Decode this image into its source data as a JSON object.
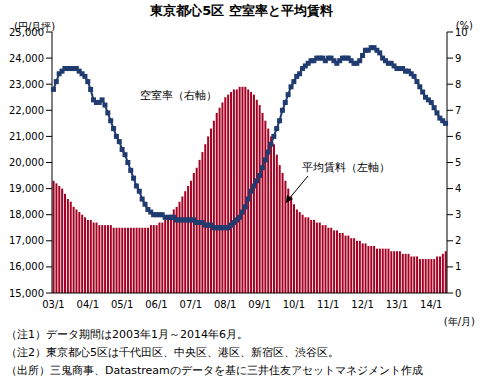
{
  "chart_data": {
    "type": "bar",
    "title": "東京都心5区 空室率と平均賃料",
    "y_label": "(円/月坪)",
    "y2_label": "(%)",
    "x_label": "(年/月)",
    "grid": false,
    "categories": [
      "03/1",
      null,
      null,
      null,
      null,
      null,
      null,
      null,
      null,
      null,
      null,
      null,
      "04/1",
      null,
      null,
      null,
      null,
      null,
      null,
      null,
      null,
      null,
      null,
      null,
      "05/1",
      null,
      null,
      null,
      null,
      null,
      null,
      null,
      null,
      null,
      null,
      null,
      "06/1",
      null,
      null,
      null,
      null,
      null,
      null,
      null,
      null,
      null,
      null,
      null,
      "07/1",
      null,
      null,
      null,
      null,
      null,
      null,
      null,
      null,
      null,
      null,
      null,
      "08/1",
      null,
      null,
      null,
      null,
      null,
      null,
      null,
      null,
      null,
      null,
      null,
      "09/1",
      null,
      null,
      null,
      null,
      null,
      null,
      null,
      null,
      null,
      null,
      null,
      "10/1",
      null,
      null,
      null,
      null,
      null,
      null,
      null,
      null,
      null,
      null,
      null,
      "11/1",
      null,
      null,
      null,
      null,
      null,
      null,
      null,
      null,
      null,
      null,
      null,
      "12/1",
      null,
      null,
      null,
      null,
      null,
      null,
      null,
      null,
      null,
      null,
      null,
      "13/1",
      null,
      null,
      null,
      null,
      null,
      null,
      null,
      null,
      null,
      null,
      null,
      "14/1",
      null,
      null,
      null,
      null,
      null
    ],
    "series": [
      {
        "name": "平均賃料（左軸）",
        "type": "bar",
        "color": "#a50021",
        "values": [
          19300,
          19200,
          19100,
          19000,
          18800,
          18600,
          18500,
          18300,
          18200,
          18100,
          18000,
          17900,
          17800,
          17800,
          17700,
          17700,
          17600,
          17600,
          17600,
          17600,
          17600,
          17500,
          17500,
          17500,
          17500,
          17500,
          17500,
          17500,
          17500,
          17500,
          17500,
          17500,
          17500,
          17500,
          17600,
          17600,
          17600,
          17700,
          17700,
          17800,
          17900,
          18000,
          18200,
          18300,
          18500,
          18700,
          18900,
          19100,
          19300,
          19600,
          19800,
          20100,
          20400,
          20700,
          21000,
          21300,
          21600,
          21900,
          22100,
          22300,
          22500,
          22600,
          22700,
          22800,
          22800,
          22900,
          22900,
          22900,
          22800,
          22700,
          22600,
          22400,
          22200,
          21900,
          21600,
          21300,
          21000,
          20700,
          20300,
          19900,
          19600,
          19300,
          19000,
          18700,
          18400,
          18200,
          18100,
          18000,
          17900,
          17900,
          17800,
          17800,
          17700,
          17700,
          17600,
          17600,
          17500,
          17500,
          17400,
          17400,
          17300,
          17300,
          17200,
          17200,
          17100,
          17100,
          17000,
          17000,
          16900,
          16900,
          16800,
          16800,
          16800,
          16700,
          16700,
          16700,
          16700,
          16700,
          16600,
          16600,
          16600,
          16600,
          16500,
          16500,
          16500,
          16400,
          16400,
          16400,
          16300,
          16300,
          16300,
          16300,
          16300,
          16300,
          16400,
          16400,
          16500,
          16600
        ]
      },
      {
        "name": "空室率（右軸）",
        "type": "line",
        "axis": "y2",
        "color": "#1f3b6f",
        "marker": "square",
        "values": [
          7.8,
          8.1,
          8.4,
          8.5,
          8.6,
          8.6,
          8.6,
          8.6,
          8.6,
          8.5,
          8.4,
          8.3,
          8.1,
          7.8,
          7.4,
          7.3,
          7.3,
          7.4,
          7.2,
          6.9,
          6.6,
          6.3,
          6.0,
          5.8,
          5.5,
          5.3,
          5.0,
          4.7,
          4.4,
          4.1,
          3.9,
          3.6,
          3.4,
          3.2,
          3.1,
          3.0,
          3.0,
          3.0,
          3.0,
          2.9,
          2.9,
          2.9,
          2.9,
          2.8,
          2.8,
          2.8,
          2.8,
          2.8,
          2.8,
          2.8,
          2.7,
          2.7,
          2.7,
          2.6,
          2.6,
          2.6,
          2.5,
          2.5,
          2.5,
          2.5,
          2.5,
          2.5,
          2.6,
          2.7,
          2.8,
          2.9,
          3.1,
          3.3,
          3.6,
          3.9,
          4.1,
          4.3,
          4.5,
          4.8,
          5.1,
          5.4,
          5.7,
          6.0,
          6.3,
          6.6,
          7.0,
          7.3,
          7.6,
          7.9,
          8.1,
          8.3,
          8.4,
          8.6,
          8.7,
          8.8,
          8.9,
          8.9,
          9.0,
          9.0,
          9.0,
          8.9,
          9.0,
          9.0,
          8.9,
          8.8,
          8.9,
          9.0,
          9.0,
          9.0,
          8.9,
          8.8,
          8.8,
          8.9,
          9.1,
          9.3,
          9.3,
          9.4,
          9.4,
          9.3,
          9.2,
          9.0,
          8.9,
          8.8,
          8.8,
          8.7,
          8.6,
          8.6,
          8.6,
          8.5,
          8.5,
          8.4,
          8.3,
          8.1,
          7.9,
          7.7,
          7.5,
          7.4,
          7.3,
          7.1,
          6.9,
          6.7,
          6.6,
          6.5
        ]
      }
    ],
    "ylim": [
      15000,
      25000
    ],
    "yticks": [
      {
        "value": 15000,
        "label": "15,000"
      },
      {
        "value": 16000,
        "label": "16,000"
      },
      {
        "value": 17000,
        "label": "17,000"
      },
      {
        "value": 18000,
        "label": "18,000"
      },
      {
        "value": 19000,
        "label": "19,000"
      },
      {
        "value": 20000,
        "label": "20,000"
      },
      {
        "value": 21000,
        "label": "21,000"
      },
      {
        "value": 22000,
        "label": "22,000"
      },
      {
        "value": 23000,
        "label": "23,000"
      },
      {
        "value": 24000,
        "label": "24,000"
      },
      {
        "value": 25000,
        "label": "25,000"
      }
    ],
    "y2lim": [
      0,
      10
    ],
    "y2ticks": [
      0,
      1,
      2,
      3,
      4,
      5,
      6,
      7,
      8,
      9,
      10
    ],
    "notes": [
      "（注1）データ期間は2003年1月～2014年6月。",
      "（注2）東京都心5区は千代田区、中央区、港区、新宿区、渋谷区。",
      "（出所）三鬼商事、Datastreamのデータを基に三井住友アセットマネジメント作成"
    ]
  }
}
